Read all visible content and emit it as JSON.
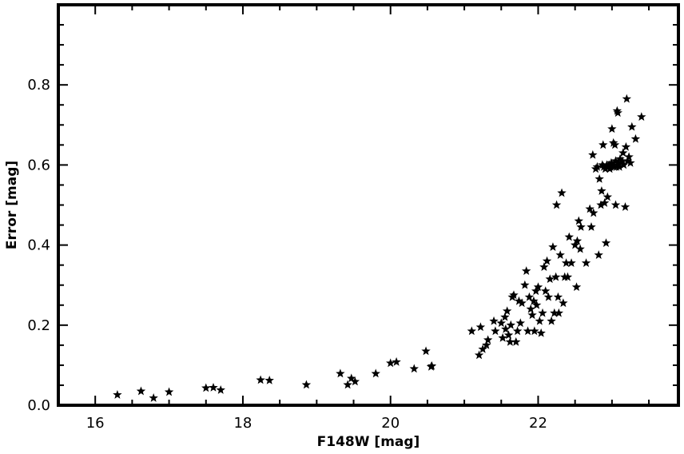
{
  "chart_data": {
    "type": "scatter",
    "xlabel": "F148W [mag]",
    "ylabel": "Error [mag]",
    "xlim": [
      15.5,
      23.9
    ],
    "ylim": [
      0.0,
      1.0
    ],
    "x_ticks": [
      16,
      18,
      20,
      22
    ],
    "x_tick_labels": [
      "16",
      "18",
      "20",
      "22"
    ],
    "y_ticks": [
      0.0,
      0.2,
      0.4,
      0.6,
      0.8
    ],
    "y_tick_labels": [
      "0.0",
      "0.2",
      "0.4",
      "0.6",
      "0.8"
    ],
    "grid": false,
    "marker": "star",
    "marker_color": "#000000",
    "points": [
      [
        16.3,
        0.026
      ],
      [
        16.62,
        0.035
      ],
      [
        16.79,
        0.018
      ],
      [
        17.0,
        0.033
      ],
      [
        17.5,
        0.043
      ],
      [
        17.6,
        0.044
      ],
      [
        17.7,
        0.038
      ],
      [
        18.24,
        0.063
      ],
      [
        18.36,
        0.062
      ],
      [
        18.86,
        0.051
      ],
      [
        19.32,
        0.079
      ],
      [
        19.42,
        0.051
      ],
      [
        19.47,
        0.067
      ],
      [
        19.52,
        0.059
      ],
      [
        19.8,
        0.079
      ],
      [
        20.0,
        0.105
      ],
      [
        20.08,
        0.108
      ],
      [
        20.32,
        0.091
      ],
      [
        20.48,
        0.135
      ],
      [
        20.55,
        0.096
      ],
      [
        20.56,
        0.098
      ],
      [
        21.1,
        0.185
      ],
      [
        21.2,
        0.125
      ],
      [
        21.22,
        0.195
      ],
      [
        21.25,
        0.14
      ],
      [
        21.3,
        0.15
      ],
      [
        21.32,
        0.163
      ],
      [
        21.4,
        0.21
      ],
      [
        21.42,
        0.185
      ],
      [
        21.5,
        0.205
      ],
      [
        21.52,
        0.168
      ],
      [
        21.55,
        0.22
      ],
      [
        21.56,
        0.19
      ],
      [
        21.58,
        0.235
      ],
      [
        21.6,
        0.175
      ],
      [
        21.62,
        0.158
      ],
      [
        21.63,
        0.2
      ],
      [
        21.65,
        0.27
      ],
      [
        21.67,
        0.275
      ],
      [
        21.7,
        0.158
      ],
      [
        21.72,
        0.185
      ],
      [
        21.74,
        0.26
      ],
      [
        21.76,
        0.205
      ],
      [
        21.78,
        0.255
      ],
      [
        21.82,
        0.3
      ],
      [
        21.84,
        0.335
      ],
      [
        21.86,
        0.185
      ],
      [
        21.88,
        0.27
      ],
      [
        21.9,
        0.24
      ],
      [
        21.92,
        0.225
      ],
      [
        21.94,
        0.26
      ],
      [
        21.95,
        0.185
      ],
      [
        21.97,
        0.285
      ],
      [
        21.98,
        0.25
      ],
      [
        22.0,
        0.295
      ],
      [
        22.02,
        0.21
      ],
      [
        22.04,
        0.18
      ],
      [
        22.06,
        0.23
      ],
      [
        22.08,
        0.345
      ],
      [
        22.1,
        0.285
      ],
      [
        22.12,
        0.36
      ],
      [
        22.14,
        0.27
      ],
      [
        22.16,
        0.315
      ],
      [
        22.18,
        0.21
      ],
      [
        22.2,
        0.395
      ],
      [
        22.22,
        0.23
      ],
      [
        22.24,
        0.32
      ],
      [
        22.25,
        0.5
      ],
      [
        22.27,
        0.27
      ],
      [
        22.28,
        0.23
      ],
      [
        22.3,
        0.375
      ],
      [
        22.32,
        0.53
      ],
      [
        22.34,
        0.255
      ],
      [
        22.36,
        0.32
      ],
      [
        22.38,
        0.355
      ],
      [
        22.4,
        0.32
      ],
      [
        22.42,
        0.42
      ],
      [
        22.45,
        0.355
      ],
      [
        22.5,
        0.4
      ],
      [
        22.52,
        0.295
      ],
      [
        22.53,
        0.41
      ],
      [
        22.55,
        0.46
      ],
      [
        22.57,
        0.39
      ],
      [
        22.58,
        0.445
      ],
      [
        22.65,
        0.355
      ],
      [
        22.7,
        0.49
      ],
      [
        22.72,
        0.445
      ],
      [
        22.74,
        0.625
      ],
      [
        22.75,
        0.48
      ],
      [
        22.78,
        0.59
      ],
      [
        22.8,
        0.595
      ],
      [
        22.82,
        0.375
      ],
      [
        22.83,
        0.565
      ],
      [
        22.85,
        0.5
      ],
      [
        22.86,
        0.535
      ],
      [
        22.87,
        0.6
      ],
      [
        22.88,
        0.65
      ],
      [
        22.89,
        0.595
      ],
      [
        22.9,
        0.505
      ],
      [
        22.91,
        0.59
      ],
      [
        22.92,
        0.405
      ],
      [
        22.93,
        0.6
      ],
      [
        22.94,
        0.52
      ],
      [
        22.95,
        0.595
      ],
      [
        22.96,
        0.6
      ],
      [
        22.97,
        0.59
      ],
      [
        22.98,
        0.595
      ],
      [
        22.99,
        0.605
      ],
      [
        23.0,
        0.69
      ],
      [
        23.01,
        0.6
      ],
      [
        23.02,
        0.655
      ],
      [
        23.03,
        0.595
      ],
      [
        23.04,
        0.65
      ],
      [
        23.05,
        0.61
      ],
      [
        23.06,
        0.595
      ],
      [
        23.07,
        0.735
      ],
      [
        23.08,
        0.605
      ],
      [
        23.09,
        0.6
      ],
      [
        23.1,
        0.595
      ],
      [
        23.11,
        0.615
      ],
      [
        23.12,
        0.605
      ],
      [
        23.14,
        0.61
      ],
      [
        23.15,
        0.63
      ],
      [
        23.16,
        0.6
      ],
      [
        23.18,
        0.495
      ],
      [
        23.19,
        0.645
      ],
      [
        23.2,
        0.765
      ],
      [
        23.21,
        0.61
      ],
      [
        23.23,
        0.62
      ],
      [
        23.25,
        0.605
      ],
      [
        23.27,
        0.695
      ],
      [
        23.32,
        0.665
      ],
      [
        23.4,
        0.72
      ],
      [
        23.05,
        0.5
      ],
      [
        23.08,
        0.73
      ]
    ]
  }
}
